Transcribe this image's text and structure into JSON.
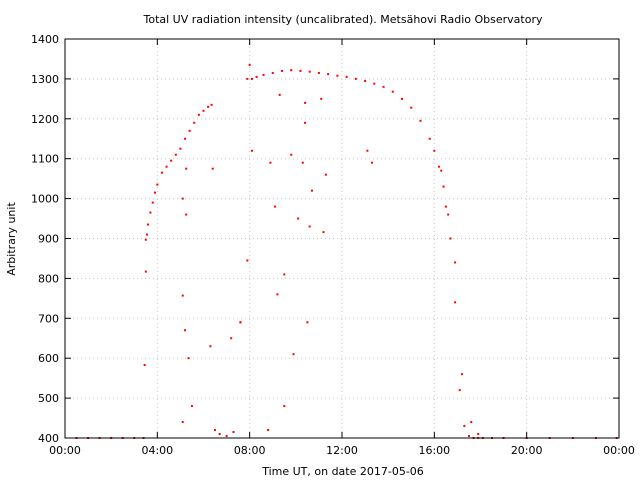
{
  "chart_data": {
    "type": "scatter",
    "title": "Total UV radiation intensity (uncalibrated). Metsähovi Radio Observatory",
    "xlabel": "Time UT, on date 2017-05-06",
    "ylabel": "Arbitrary unit",
    "xlim": [
      0,
      24
    ],
    "ylim": [
      400,
      1400
    ],
    "x_ticks": [
      0,
      4,
      8,
      12,
      16,
      20,
      24
    ],
    "x_tick_labels": [
      "00:00",
      "04:00",
      "08:00",
      "12:00",
      "16:00",
      "20:00",
      "00:00"
    ],
    "y_ticks": [
      400,
      500,
      600,
      700,
      800,
      900,
      1000,
      1100,
      1200,
      1300,
      1400
    ],
    "y_tick_labels": [
      "400",
      "500",
      "600",
      "700",
      "800",
      "900",
      "1000",
      "1100",
      "1200",
      "1300",
      "1400"
    ],
    "grid": true,
    "marker_color": "#ff0000",
    "series": [
      {
        "name": "",
        "x": [
          0.5,
          1.0,
          1.5,
          2.0,
          2.5,
          3.0,
          3.4,
          3.5,
          3.55,
          3.6,
          3.7,
          3.8,
          3.9,
          4.0,
          4.2,
          4.4,
          4.6,
          4.8,
          5.0,
          5.1,
          5.2,
          5.4,
          5.6,
          5.8,
          6.0,
          6.2,
          6.35,
          6.5,
          6.7,
          7.0,
          7.3,
          7.6,
          7.9,
          8.1,
          8.3,
          8.6,
          9.0,
          9.4,
          9.8,
          10.2,
          10.6,
          11.0,
          11.4,
          11.8,
          12.2,
          12.6,
          13.0,
          13.4,
          13.8,
          14.2,
          14.6,
          15.0,
          15.4,
          15.8,
          16.0,
          16.2,
          16.3,
          16.5,
          16.7,
          16.9,
          17.1,
          17.3,
          17.5,
          17.7,
          17.9,
          18.1,
          18.5,
          19.0,
          20.0,
          21.0,
          22.0,
          23.0,
          23.9,
          3.45,
          3.5,
          5.1,
          5.2,
          5.35,
          5.5,
          5.25,
          6.3,
          6.4,
          7.2,
          7.6,
          7.9,
          8.0,
          8.1,
          8.9,
          9.2,
          9.5,
          9.8,
          10.3,
          10.6,
          11.3,
          13.3,
          5.1,
          5.25,
          9.1,
          10.4,
          10.7,
          8.8,
          9.5,
          9.9,
          10.5,
          16.4,
          16.6,
          16.9,
          17.2,
          17.6,
          17.9,
          9.3,
          10.1,
          10.4,
          11.1,
          11.2,
          13.1
        ],
        "y": [
          400,
          400,
          400,
          400,
          400,
          400,
          400,
          897,
          910,
          935,
          965,
          990,
          1015,
          1035,
          1065,
          1080,
          1095,
          1110,
          1125,
          1000,
          1150,
          1170,
          1190,
          1210,
          1220,
          1230,
          1235,
          420,
          410,
          405,
          415,
          690,
          1300,
          1300,
          1305,
          1310,
          1315,
          1320,
          1322,
          1320,
          1318,
          1315,
          1312,
          1308,
          1305,
          1300,
          1295,
          1288,
          1280,
          1268,
          1250,
          1228,
          1195,
          1150,
          1120,
          1080,
          1070,
          980,
          900,
          740,
          520,
          430,
          405,
          400,
          400,
          400,
          400,
          400,
          400,
          400,
          400,
          400,
          400,
          583,
          817,
          757,
          670,
          600,
          480,
          1075,
          630,
          1075,
          650,
          690,
          845,
          1335,
          1120,
          1090,
          760,
          810,
          1110,
          1090,
          930,
          1060,
          1090,
          440,
          960,
          980,
          1240,
          1020,
          420,
          480,
          610,
          690,
          1030,
          960,
          840,
          560,
          440,
          410,
          1260,
          950,
          1190,
          1250,
          916,
          1120
        ],
        "note_ignore": ""
      }
    ]
  }
}
